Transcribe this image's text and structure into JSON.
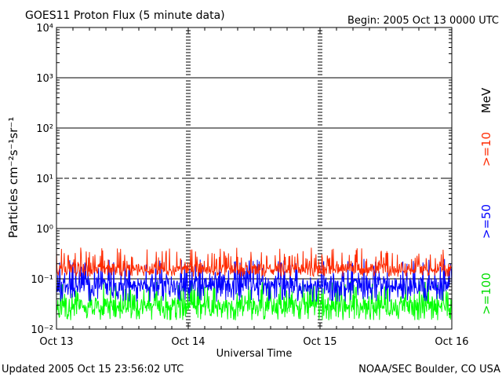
{
  "header": {
    "title": "GOES11 Proton Flux (5 minute data)",
    "begin": "Begin: 2005 Oct 13 0000 UTC"
  },
  "footer": {
    "updated": "Updated 2005 Oct 15 23:56:02 UTC",
    "credit": "NOAA/SEC Boulder, CO USA"
  },
  "chart_data": {
    "type": "line",
    "title": "GOES11 Proton Flux (5 minute data)",
    "xlabel": "Universal Time",
    "ylabel": "Particles cm⁻²s⁻¹sr⁻¹",
    "x_ticks": [
      "Oct 13",
      "Oct 14",
      "Oct 15",
      "Oct 16"
    ],
    "y_ticks": [
      "10⁻²",
      "10⁻¹",
      "10⁰",
      "10¹",
      "10²",
      "10³",
      "10⁴"
    ],
    "y_scale": "log",
    "ylim": [
      0.01,
      10000
    ],
    "xlim_days": [
      0,
      3
    ],
    "legend_unit": "MeV",
    "legend_placement": "right-vertical",
    "reference_lines": [
      {
        "value": 1,
        "style": "solid"
      },
      {
        "value": 10,
        "style": "dashed"
      },
      {
        "value": 100,
        "style": "solid"
      },
      {
        "value": 1000,
        "style": "solid"
      },
      {
        "value": 0.1,
        "style": "solid"
      }
    ],
    "series": [
      {
        "name": ">=10",
        "color": "#ff2a00",
        "typical_min": 0.11,
        "typical_max": 0.42,
        "baseline": 0.16
      },
      {
        "name": ">=50",
        "color": "#0000ff",
        "typical_min": 0.035,
        "typical_max": 0.25,
        "baseline": 0.075
      },
      {
        "name": ">=100",
        "color": "#00ff00",
        "typical_min": 0.015,
        "typical_max": 0.09,
        "baseline": 0.03
      }
    ]
  }
}
